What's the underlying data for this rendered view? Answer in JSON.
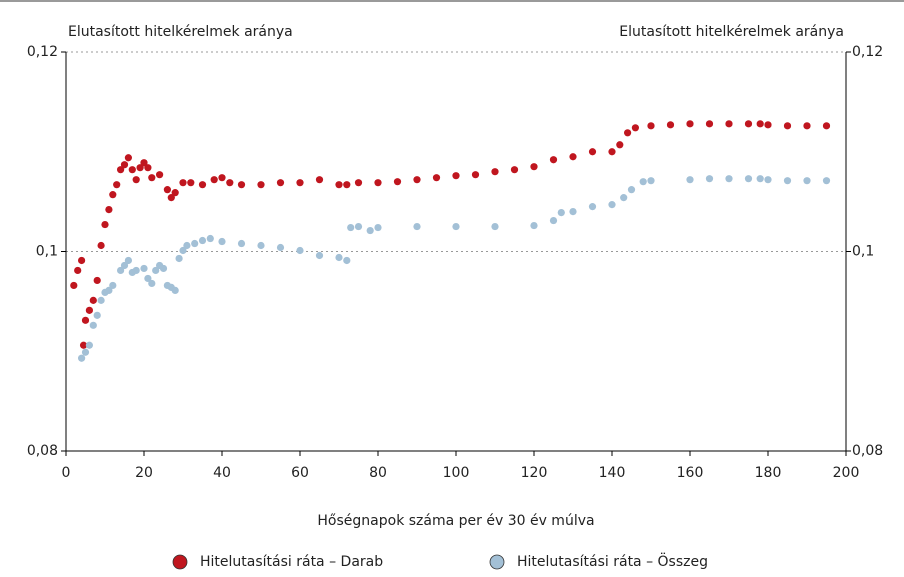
{
  "chart_data": {
    "type": "scatter",
    "y_label": "Elutasított hitelkérelmek aránya",
    "y2_label": "Elutasított hitelkérelmek aránya",
    "x_label": "Hőségnapok száma per év 30 év múlva",
    "xlim": [
      0,
      200
    ],
    "xticks": [
      0,
      20,
      40,
      60,
      80,
      100,
      120,
      140,
      160,
      180,
      200
    ],
    "ylim": [
      0.08,
      0.12
    ],
    "yticks": [
      {
        "value": 0.08,
        "label": "0,08"
      },
      {
        "value": 0.1,
        "label": "0,1"
      },
      {
        "value": 0.12,
        "label": "0,12"
      }
    ],
    "y2lim": [
      0.08,
      0.12
    ],
    "y2ticks": [
      {
        "value": 0.08,
        "label": "0,08"
      },
      {
        "value": 0.1,
        "label": "0,1"
      },
      {
        "value": 0.12,
        "label": "0,12"
      }
    ],
    "grid": true,
    "legend": "bottom",
    "series": [
      {
        "name": "Hitelutasítási ráta – Darab",
        "color": "#c0161f",
        "x": [
          2,
          3,
          4,
          4.5,
          5,
          6,
          7,
          8,
          9,
          10,
          11,
          12,
          13,
          14,
          15,
          16,
          17,
          18,
          19,
          20,
          21,
          22,
          24,
          26,
          27,
          28,
          30,
          32,
          35,
          38,
          40,
          42,
          45,
          50,
          55,
          60,
          65,
          70,
          72,
          75,
          80,
          85,
          90,
          95,
          100,
          105,
          110,
          115,
          120,
          125,
          130,
          135,
          140,
          142,
          144,
          146,
          150,
          155,
          160,
          165,
          170,
          175,
          178,
          180,
          185,
          190,
          195
        ],
        "values": [
          0.0966,
          0.0981,
          0.0991,
          0.0906,
          0.0931,
          0.0941,
          0.0951,
          0.0971,
          0.1006,
          0.1027,
          0.1042,
          0.1057,
          0.1067,
          0.1082,
          0.1087,
          0.1094,
          0.1082,
          0.1072,
          0.1084,
          0.1089,
          0.1084,
          0.1074,
          0.1077,
          0.1062,
          0.1054,
          0.1059,
          0.1069,
          0.1069,
          0.1067,
          0.1072,
          0.1074,
          0.1069,
          0.1067,
          0.1067,
          0.1069,
          0.1069,
          0.1072,
          0.1067,
          0.1067,
          0.1069,
          0.1069,
          0.107,
          0.1072,
          0.1074,
          0.1076,
          0.1077,
          0.108,
          0.1082,
          0.1085,
          0.1092,
          0.1095,
          0.11,
          0.11,
          0.1107,
          0.1119,
          0.1124,
          0.1126,
          0.1127,
          0.1128,
          0.1128,
          0.1128,
          0.1128,
          0.1128,
          0.1127,
          0.1126,
          0.1126,
          0.1126
        ]
      },
      {
        "name": "Hitelutasítási ráta – Összeg",
        "color": "#a3c0d6",
        "x": [
          4,
          5,
          6,
          7,
          8,
          9,
          10,
          11,
          12,
          14,
          15,
          16,
          17,
          18,
          20,
          21,
          22,
          23,
          24,
          25,
          26,
          27,
          28,
          29,
          30,
          31,
          33,
          35,
          37,
          40,
          45,
          50,
          55,
          60,
          65,
          70,
          72,
          73,
          75,
          78,
          80,
          90,
          100,
          110,
          120,
          125,
          127,
          130,
          135,
          140,
          143,
          145,
          148,
          150,
          160,
          165,
          170,
          175,
          178,
          180,
          185,
          190,
          195
        ],
        "values": [
          0.0893,
          0.0899,
          0.0906,
          0.0926,
          0.0936,
          0.0951,
          0.0959,
          0.0961,
          0.0966,
          0.0981,
          0.0986,
          0.0991,
          0.0979,
          0.0981,
          0.0983,
          0.0973,
          0.0968,
          0.0981,
          0.0986,
          0.0983,
          0.0966,
          0.0964,
          0.0961,
          0.0993,
          0.1001,
          0.1006,
          0.1008,
          0.1011,
          0.1013,
          0.101,
          0.1008,
          0.1006,
          0.1004,
          0.1001,
          0.0996,
          0.0994,
          0.0991,
          0.1024,
          0.1025,
          0.1021,
          0.1024,
          0.1025,
          0.1025,
          0.1025,
          0.1026,
          0.1031,
          0.1039,
          0.104,
          0.1045,
          0.1047,
          0.1054,
          0.1062,
          0.107,
          0.1071,
          0.1072,
          0.1073,
          0.1073,
          0.1073,
          0.1073,
          0.1072,
          0.1071,
          0.1071,
          0.1071
        ]
      }
    ]
  }
}
